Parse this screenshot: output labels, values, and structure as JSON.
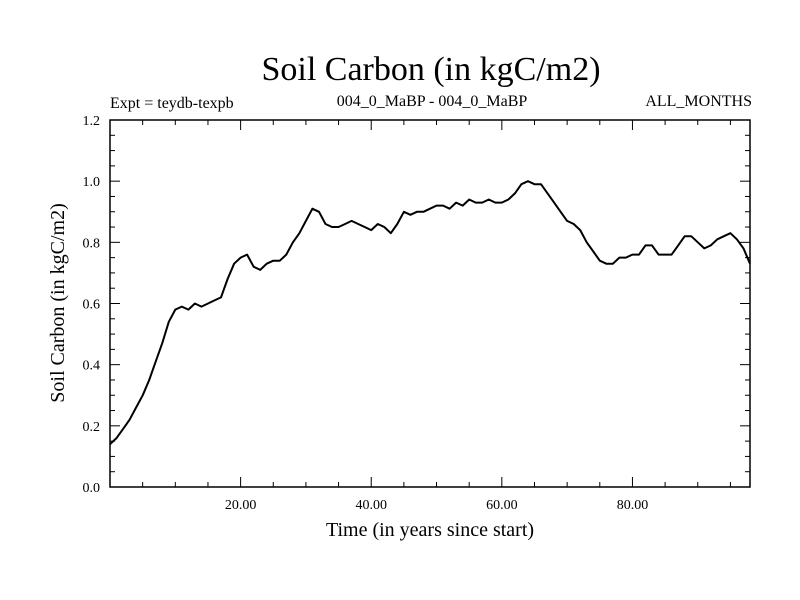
{
  "chart_data": {
    "type": "line",
    "title": "Soil Carbon (in kgC/m2)",
    "subtitle_left": "Expt = teydb-texpb",
    "subtitle_center": "004_0_MaBP - 004_0_MaBP",
    "subtitle_right": "ALL_MONTHS",
    "xlabel": "Time (in years since start)",
    "ylabel": "Soil Carbon (in kgC/m2)",
    "xlim": [
      0,
      98
    ],
    "ylim": [
      0,
      1.2
    ],
    "xticks": [
      {
        "value": 20,
        "label": "20.00"
      },
      {
        "value": 40,
        "label": "40.00"
      },
      {
        "value": 60,
        "label": "60.00"
      },
      {
        "value": 80,
        "label": "80.00"
      }
    ],
    "yticks": [
      {
        "value": 0.0,
        "label": "0.0"
      },
      {
        "value": 0.2,
        "label": "0.2"
      },
      {
        "value": 0.4,
        "label": "0.4"
      },
      {
        "value": 0.6,
        "label": "0.6"
      },
      {
        "value": 0.8,
        "label": "0.8"
      },
      {
        "value": 1.0,
        "label": "1.0"
      },
      {
        "value": 1.2,
        "label": "1.2"
      }
    ],
    "grid": false,
    "series": [
      {
        "name": "Soil Carbon",
        "x": [
          0,
          1,
          2,
          3,
          4,
          5,
          6,
          7,
          8,
          9,
          10,
          11,
          12,
          13,
          14,
          15,
          16,
          17,
          18,
          19,
          20,
          21,
          22,
          23,
          24,
          25,
          26,
          27,
          28,
          29,
          30,
          31,
          32,
          33,
          34,
          35,
          36,
          37,
          38,
          39,
          40,
          41,
          42,
          43,
          44,
          45,
          46,
          47,
          48,
          49,
          50,
          51,
          52,
          53,
          54,
          55,
          56,
          57,
          58,
          59,
          60,
          61,
          62,
          63,
          64,
          65,
          66,
          67,
          68,
          69,
          70,
          71,
          72,
          73,
          74,
          75,
          76,
          77,
          78,
          79,
          80,
          81,
          82,
          83,
          84,
          85,
          86,
          87,
          88,
          89,
          90,
          91,
          92,
          93,
          94,
          95,
          96,
          97,
          98
        ],
        "values": [
          0.14,
          0.16,
          0.19,
          0.22,
          0.26,
          0.3,
          0.35,
          0.41,
          0.47,
          0.54,
          0.58,
          0.59,
          0.58,
          0.6,
          0.59,
          0.6,
          0.61,
          0.62,
          0.68,
          0.73,
          0.75,
          0.76,
          0.72,
          0.71,
          0.73,
          0.74,
          0.74,
          0.76,
          0.8,
          0.83,
          0.87,
          0.91,
          0.9,
          0.86,
          0.85,
          0.85,
          0.86,
          0.87,
          0.86,
          0.85,
          0.84,
          0.86,
          0.85,
          0.83,
          0.86,
          0.9,
          0.89,
          0.9,
          0.9,
          0.91,
          0.92,
          0.92,
          0.91,
          0.93,
          0.92,
          0.94,
          0.93,
          0.93,
          0.94,
          0.93,
          0.93,
          0.94,
          0.96,
          0.99,
          1.0,
          0.99,
          0.99,
          0.96,
          0.93,
          0.9,
          0.87,
          0.86,
          0.84,
          0.8,
          0.77,
          0.74,
          0.73,
          0.73,
          0.75,
          0.75,
          0.76,
          0.76,
          0.79,
          0.79,
          0.76,
          0.76,
          0.76,
          0.79,
          0.82,
          0.82,
          0.8,
          0.78,
          0.79,
          0.81,
          0.82,
          0.83,
          0.81,
          0.78,
          0.73
        ]
      }
    ]
  }
}
